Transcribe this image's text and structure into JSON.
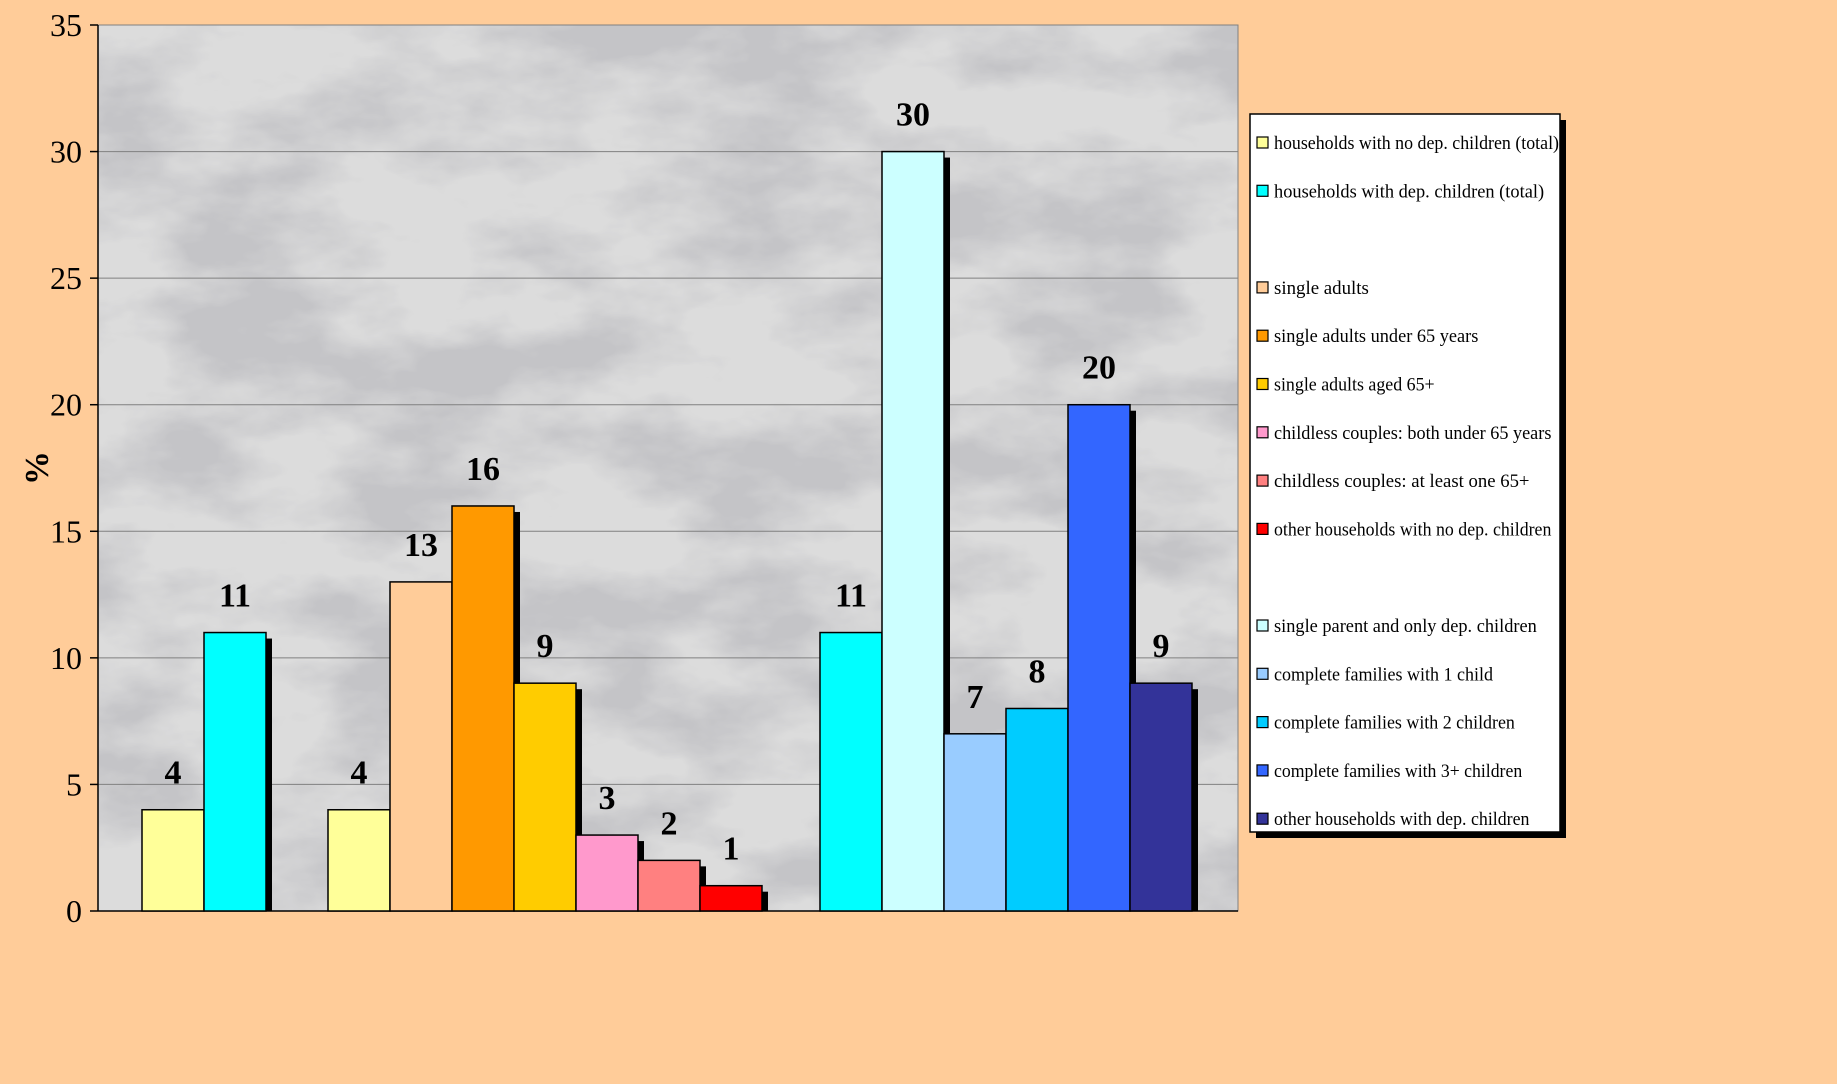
{
  "chart_data": {
    "type": "bar",
    "title": "",
    "xlabel": "",
    "ylabel": "%",
    "ylim": [
      0,
      35
    ],
    "yticks": [
      0,
      5,
      10,
      15,
      20,
      25,
      30,
      35
    ],
    "grid": true,
    "legend_position": "right",
    "groups": [
      {
        "bars": [
          {
            "name": "households with no dep. children (total)",
            "value": 4,
            "color": "#ffff99"
          },
          {
            "name": "households with dep. children (total)",
            "value": 11,
            "color": "#00ffff"
          }
        ]
      },
      {
        "bars": [
          {
            "name": "households with no dep. children (total)",
            "value": 4,
            "color": "#ffff99"
          },
          {
            "name": "single adults",
            "value": 13,
            "color": "#ffcc99"
          },
          {
            "name": "single adults under 65 years",
            "value": 16,
            "color": "#ff9900"
          },
          {
            "name": "single adults aged 65+",
            "value": 9,
            "color": "#ffcc00"
          },
          {
            "name": "childless couples: both under 65 years",
            "value": 3,
            "color": "#ff99cc"
          },
          {
            "name": "childless couples: at least one 65+",
            "value": 2,
            "color": "#ff8080"
          },
          {
            "name": "other households with no dep. children",
            "value": 1,
            "color": "#ff0000"
          }
        ]
      },
      {
        "bars": [
          {
            "name": "households with dep. children (total)",
            "value": 11,
            "color": "#00ffff"
          },
          {
            "name": "single parent and only dep. children",
            "value": 30,
            "color": "#ccffff"
          },
          {
            "name": "complete families with 1 child",
            "value": 7,
            "color": "#99ccff"
          },
          {
            "name": "complete families with 2 children",
            "value": 8,
            "color": "#00ccff"
          },
          {
            "name": "complete families with 3+ children",
            "value": 20,
            "color": "#3366ff"
          },
          {
            "name": "other households with dep. children",
            "value": 9,
            "color": "#333399"
          }
        ]
      }
    ],
    "legend": [
      {
        "label": "households with no dep. children (total)",
        "color": "#ffff99"
      },
      {
        "label": "households with dep. children (total)",
        "color": "#00ffff"
      },
      {
        "label": "",
        "color": ""
      },
      {
        "label": "single adults",
        "color": "#ffcc99"
      },
      {
        "label": "single adults under 65 years",
        "color": "#ff9900"
      },
      {
        "label": "single adults aged 65+",
        "color": "#ffcc00"
      },
      {
        "label": "childless couples: both under 65 years",
        "color": "#ff99cc"
      },
      {
        "label": "childless couples: at least one 65+",
        "color": "#ff8080"
      },
      {
        "label": "other households with no dep. children",
        "color": "#ff0000"
      },
      {
        "label": "",
        "color": ""
      },
      {
        "label": "single parent and only dep. children",
        "color": "#ccffff"
      },
      {
        "label": "complete families with 1 child",
        "color": "#99ccff"
      },
      {
        "label": "complete families with 2 children",
        "color": "#00ccff"
      },
      {
        "label": "complete families with 3+ children",
        "color": "#3366ff"
      },
      {
        "label": "other households with dep. children",
        "color": "#333399"
      }
    ],
    "colors": {
      "background": "#ffcc99",
      "plot_area": "#dcdcdc",
      "grid": "#808080"
    }
  }
}
